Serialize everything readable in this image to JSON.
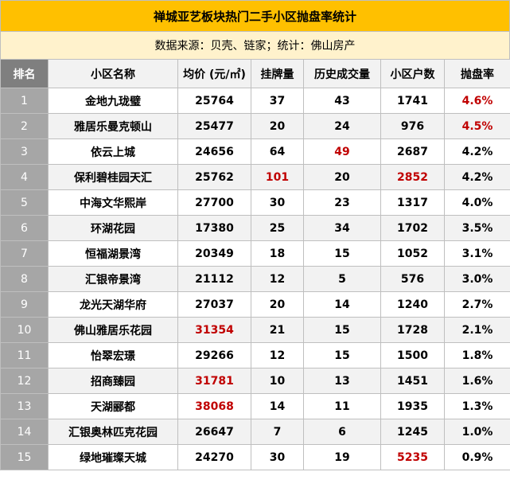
{
  "title": "禅城亚艺板块热门二手小区抛盘率统计",
  "source": "数据来源：贝壳、链家；统计：佛山房产",
  "colors": {
    "header": "#ffc000",
    "subheader": "#fff2cc",
    "highlight": "#c00000"
  },
  "chart_data": {
    "type": "table",
    "columns": [
      "排名",
      "小区名称",
      "均价 (元/㎡)",
      "挂牌量",
      "历史成交量",
      "小区户数",
      "抛盘率"
    ],
    "rows": [
      [
        "1",
        "金地九珑璧",
        "25764",
        "37",
        "43",
        "1741",
        "4.6%"
      ],
      [
        "2",
        "雅居乐曼克顿山",
        "25477",
        "20",
        "24",
        "976",
        "4.5%"
      ],
      [
        "3",
        "依云上城",
        "24656",
        "64",
        "49",
        "2687",
        "4.2%"
      ],
      [
        "4",
        "保利碧桂园天汇",
        "25762",
        "101",
        "20",
        "2852",
        "4.2%"
      ],
      [
        "5",
        "中海文华熙岸",
        "27700",
        "30",
        "23",
        "1317",
        "4.0%"
      ],
      [
        "6",
        "环湖花园",
        "17380",
        "25",
        "34",
        "1702",
        "3.5%"
      ],
      [
        "7",
        "恒福湖景湾",
        "20349",
        "18",
        "15",
        "1052",
        "3.1%"
      ],
      [
        "8",
        "汇银帝景湾",
        "21112",
        "12",
        "5",
        "576",
        "3.0%"
      ],
      [
        "9",
        "龙光天湖华府",
        "27037",
        "20",
        "14",
        "1240",
        "2.7%"
      ],
      [
        "10",
        "佛山雅居乐花园",
        "31354",
        "21",
        "15",
        "1728",
        "2.1%"
      ],
      [
        "11",
        "怡翠宏璟",
        "29266",
        "12",
        "15",
        "1500",
        "1.8%"
      ],
      [
        "12",
        "招商臻园",
        "31781",
        "10",
        "13",
        "1451",
        "1.6%"
      ],
      [
        "13",
        "天湖郦都",
        "38068",
        "14",
        "11",
        "1935",
        "1.3%"
      ],
      [
        "14",
        "汇银奥林匹克花园",
        "26647",
        "7",
        "6",
        "1245",
        "1.0%"
      ],
      [
        "15",
        "绿地璀璨天城",
        "24270",
        "30",
        "19",
        "5235",
        "0.9%"
      ]
    ],
    "highlighted_cells": [
      [
        0,
        6
      ],
      [
        1,
        6
      ],
      [
        2,
        4
      ],
      [
        3,
        3
      ],
      [
        3,
        5
      ],
      [
        9,
        2
      ],
      [
        11,
        2
      ],
      [
        12,
        2
      ],
      [
        14,
        5
      ]
    ]
  }
}
